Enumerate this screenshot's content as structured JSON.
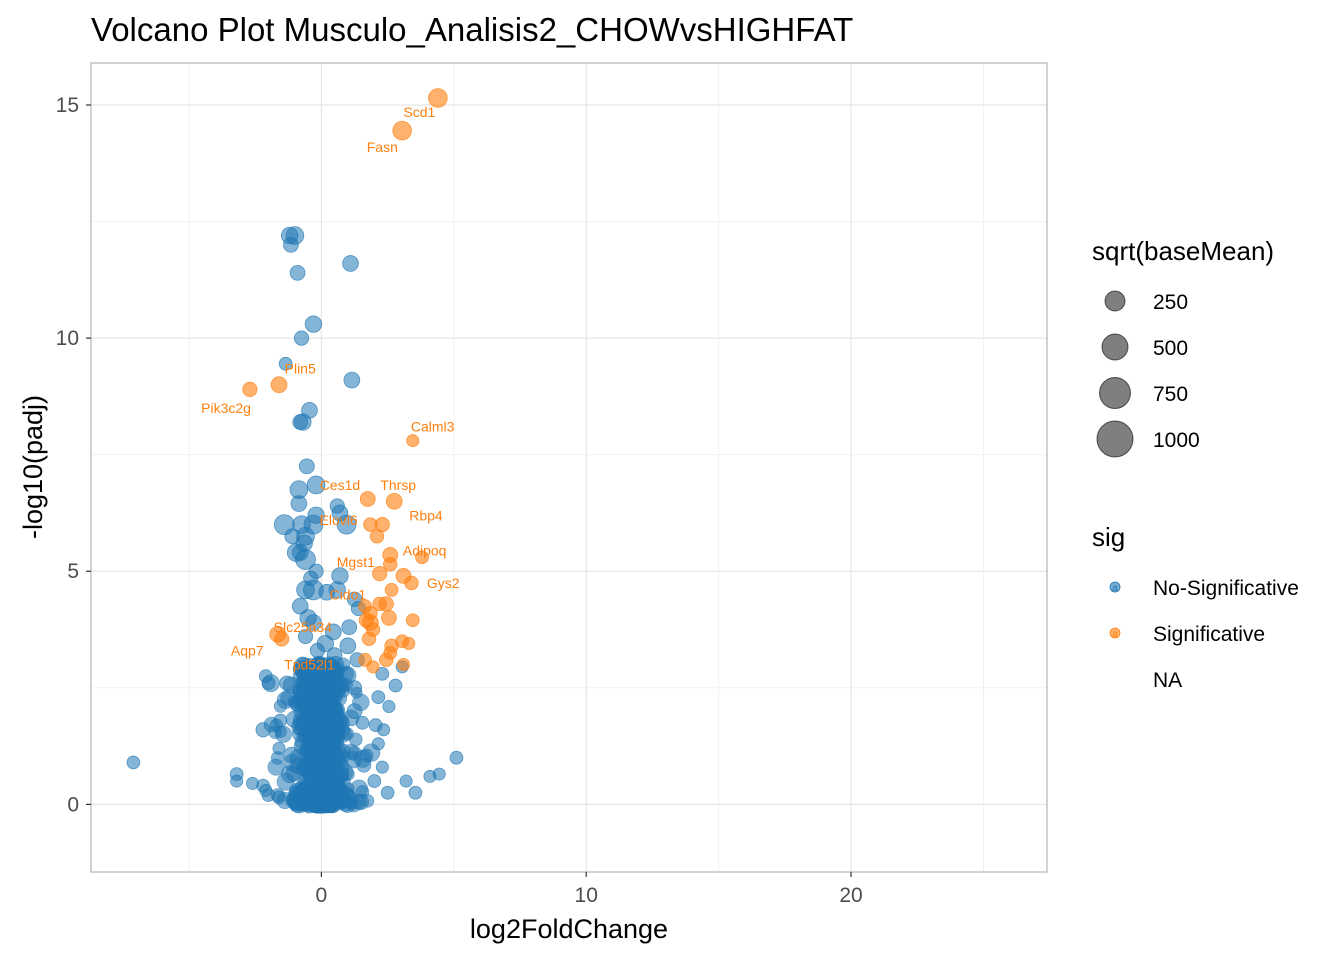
{
  "chart_data": {
    "type": "scatter",
    "title": "Volcano Plot Musculo_Analisis2_CHOWvsHIGHFAT",
    "xlabel": "log2FoldChange",
    "ylabel": "-log10(padj)",
    "xlim": [
      -8.7,
      27.4
    ],
    "ylim": [
      -1.45,
      15.9
    ],
    "x_ticks": [
      0,
      10,
      20
    ],
    "x_tick_labels": [
      "0",
      "10",
      "20"
    ],
    "y_ticks": [
      0,
      5,
      10,
      15
    ],
    "y_tick_labels": [
      "0",
      "5",
      "10",
      "15"
    ],
    "grid": true,
    "legend_position": "right",
    "colors": {
      "No-Significative": "#1f77b4",
      "Significative": "#ff7f0e"
    },
    "legend": {
      "size_title": "sqrt(baseMean)",
      "size_entries": [
        {
          "label": "250",
          "value": 250
        },
        {
          "label": "500",
          "value": 500
        },
        {
          "label": "750",
          "value": 750
        },
        {
          "label": "1000",
          "value": 1000
        }
      ],
      "color_title": "sig",
      "color_entries": [
        {
          "label": "No-Significative",
          "color": "#1f77b4",
          "key": "a"
        },
        {
          "label": "Significative",
          "color": "#ff7f0e",
          "key": "a"
        },
        {
          "label": "NA",
          "color": "",
          "key": ""
        }
      ]
    },
    "significant_points": [
      {
        "x": 4.4,
        "y": 15.15,
        "size": 560,
        "label": ""
      },
      {
        "x": 3.05,
        "y": 14.45,
        "size": 560,
        "label": "Scd1"
      },
      {
        "x": -1.6,
        "y": 9.0,
        "size": 380,
        "label": "Plin5"
      },
      {
        "x": -2.7,
        "y": 8.9,
        "size": 300,
        "label": "Pik3c2g"
      },
      {
        "x": 3.45,
        "y": 7.8,
        "size": 200,
        "label": "Calml3"
      },
      {
        "x": 1.75,
        "y": 6.55,
        "size": 330,
        "label": ""
      },
      {
        "x": 2.75,
        "y": 6.5,
        "size": 380,
        "label": "Thrsp"
      },
      {
        "x": 1.85,
        "y": 6.0,
        "size": 260,
        "label": ""
      },
      {
        "x": 2.3,
        "y": 6.0,
        "size": 300,
        "label": ""
      },
      {
        "x": 2.1,
        "y": 5.75,
        "size": 260,
        "label": ""
      },
      {
        "x": 2.6,
        "y": 5.35,
        "size": 330,
        "label": "Mgst1"
      },
      {
        "x": 3.8,
        "y": 5.3,
        "size": 230,
        "label": ""
      },
      {
        "x": 2.6,
        "y": 5.15,
        "size": 260,
        "label": ""
      },
      {
        "x": 2.2,
        "y": 4.95,
        "size": 300,
        "label": ""
      },
      {
        "x": 3.1,
        "y": 4.9,
        "size": 330,
        "label": ""
      },
      {
        "x": 3.4,
        "y": 4.75,
        "size": 260,
        "label": ""
      },
      {
        "x": 2.65,
        "y": 4.6,
        "size": 230,
        "label": ""
      },
      {
        "x": 2.2,
        "y": 4.3,
        "size": 260,
        "label": ""
      },
      {
        "x": 2.45,
        "y": 4.3,
        "size": 300,
        "label": ""
      },
      {
        "x": 1.85,
        "y": 4.1,
        "size": 260,
        "label": ""
      },
      {
        "x": 1.65,
        "y": 4.25,
        "size": 230,
        "label": ""
      },
      {
        "x": 2.55,
        "y": 4.0,
        "size": 330,
        "label": ""
      },
      {
        "x": 3.45,
        "y": 3.95,
        "size": 230,
        "label": ""
      },
      {
        "x": 1.85,
        "y": 3.9,
        "size": 380,
        "label": ""
      },
      {
        "x": 1.7,
        "y": 3.95,
        "size": 300,
        "label": ""
      },
      {
        "x": 1.95,
        "y": 3.75,
        "size": 260,
        "label": ""
      },
      {
        "x": -1.65,
        "y": 3.65,
        "size": 380,
        "label": "Slc25a34"
      },
      {
        "x": -1.5,
        "y": 3.55,
        "size": 300,
        "label": "Aqp7"
      },
      {
        "x": 1.8,
        "y": 3.55,
        "size": 260,
        "label": ""
      },
      {
        "x": 3.05,
        "y": 3.5,
        "size": 230,
        "label": ""
      },
      {
        "x": 3.3,
        "y": 3.45,
        "size": 200,
        "label": ""
      },
      {
        "x": 2.65,
        "y": 3.4,
        "size": 260,
        "label": ""
      },
      {
        "x": 2.6,
        "y": 3.25,
        "size": 230,
        "label": ""
      },
      {
        "x": 2.45,
        "y": 3.1,
        "size": 260,
        "label": ""
      },
      {
        "x": 1.65,
        "y": 3.1,
        "size": 230,
        "label": ""
      },
      {
        "x": 3.1,
        "y": 3.0,
        "size": 200,
        "label": ""
      },
      {
        "x": 1.95,
        "y": 2.95,
        "size": 200,
        "label": ""
      }
    ],
    "nonsig_points": [
      {
        "x": -1.0,
        "y": 12.2,
        "size": 500
      },
      {
        "x": -1.2,
        "y": 12.2,
        "size": 420
      },
      {
        "x": -1.15,
        "y": 12.0,
        "size": 330
      },
      {
        "x": 1.1,
        "y": 11.6,
        "size": 380
      },
      {
        "x": -0.9,
        "y": 11.4,
        "size": 330
      },
      {
        "x": -0.3,
        "y": 10.3,
        "size": 420
      },
      {
        "x": -0.75,
        "y": 10.0,
        "size": 300
      },
      {
        "x": -1.35,
        "y": 9.45,
        "size": 230
      },
      {
        "x": 1.15,
        "y": 9.1,
        "size": 380
      },
      {
        "x": -0.45,
        "y": 8.45,
        "size": 380
      },
      {
        "x": -0.7,
        "y": 8.2,
        "size": 420
      },
      {
        "x": -0.8,
        "y": 8.2,
        "size": 330
      },
      {
        "x": -0.55,
        "y": 7.25,
        "size": 330
      },
      {
        "x": -0.85,
        "y": 6.75,
        "size": 500
      },
      {
        "x": -0.2,
        "y": 6.85,
        "size": 500
      },
      {
        "x": -0.85,
        "y": 6.45,
        "size": 380
      },
      {
        "x": 0.6,
        "y": 6.4,
        "size": 300
      },
      {
        "x": 0.7,
        "y": 6.25,
        "size": 380
      },
      {
        "x": -0.2,
        "y": 6.2,
        "size": 420
      },
      {
        "x": -1.4,
        "y": 6.0,
        "size": 650
      },
      {
        "x": -0.75,
        "y": 6.0,
        "size": 500
      },
      {
        "x": -0.3,
        "y": 6.0,
        "size": 580
      },
      {
        "x": 0.95,
        "y": 6.0,
        "size": 580
      },
      {
        "x": -0.6,
        "y": 5.75,
        "size": 500
      },
      {
        "x": -1.1,
        "y": 5.75,
        "size": 330
      },
      {
        "x": -0.65,
        "y": 5.6,
        "size": 420
      },
      {
        "x": -0.95,
        "y": 5.4,
        "size": 500
      },
      {
        "x": -0.6,
        "y": 5.25,
        "size": 650
      },
      {
        "x": -0.8,
        "y": 5.4,
        "size": 380
      },
      {
        "x": -0.2,
        "y": 5.0,
        "size": 300
      },
      {
        "x": 0.7,
        "y": 4.9,
        "size": 420
      },
      {
        "x": -0.4,
        "y": 4.85,
        "size": 300
      },
      {
        "x": -0.6,
        "y": 4.6,
        "size": 500
      },
      {
        "x": -0.3,
        "y": 4.6,
        "size": 650
      },
      {
        "x": 0.6,
        "y": 4.6,
        "size": 420
      },
      {
        "x": 0.2,
        "y": 4.55,
        "size": 380
      },
      {
        "x": 1.25,
        "y": 4.4,
        "size": 300
      },
      {
        "x": -0.8,
        "y": 4.25,
        "size": 380
      },
      {
        "x": 1.4,
        "y": 4.2,
        "size": 300
      },
      {
        "x": -0.5,
        "y": 4.0,
        "size": 420
      },
      {
        "x": 1.05,
        "y": 3.8,
        "size": 330
      },
      {
        "x": -0.3,
        "y": 3.9,
        "size": 380
      },
      {
        "x": 0.45,
        "y": 3.7,
        "size": 380
      },
      {
        "x": -0.6,
        "y": 3.6,
        "size": 300
      },
      {
        "x": 0.15,
        "y": 3.45,
        "size": 420
      },
      {
        "x": 1.0,
        "y": 3.4,
        "size": 380
      },
      {
        "x": 0.5,
        "y": 3.2,
        "size": 330
      },
      {
        "x": -0.15,
        "y": 3.3,
        "size": 300
      },
      {
        "x": 1.35,
        "y": 3.1,
        "size": 300
      },
      {
        "x": 2.3,
        "y": 2.8,
        "size": 230
      },
      {
        "x": 2.8,
        "y": 2.55,
        "size": 230
      },
      {
        "x": 3.05,
        "y": 2.95,
        "size": 200
      },
      {
        "x": -2.1,
        "y": 2.75,
        "size": 230
      },
      {
        "x": -2.0,
        "y": 2.6,
        "size": 230
      },
      {
        "x": -1.3,
        "y": 2.6,
        "size": 300
      },
      {
        "x": 1.25,
        "y": 2.5,
        "size": 300
      },
      {
        "x": 2.15,
        "y": 2.3,
        "size": 230
      },
      {
        "x": 2.55,
        "y": 2.1,
        "size": 200
      },
      {
        "x": 1.25,
        "y": 2.0,
        "size": 330
      },
      {
        "x": -2.2,
        "y": 1.6,
        "size": 300
      },
      {
        "x": -1.55,
        "y": 1.8,
        "size": 230
      },
      {
        "x": -1.7,
        "y": 1.7,
        "size": 200
      },
      {
        "x": 1.55,
        "y": 1.75,
        "size": 230
      },
      {
        "x": 2.05,
        "y": 1.7,
        "size": 230
      },
      {
        "x": 2.35,
        "y": 1.6,
        "size": 200
      },
      {
        "x": -7.1,
        "y": 0.9,
        "size": 230
      },
      {
        "x": -3.2,
        "y": 0.65,
        "size": 230
      },
      {
        "x": -3.2,
        "y": 0.5,
        "size": 200
      },
      {
        "x": -2.6,
        "y": 0.45,
        "size": 200
      },
      {
        "x": -2.2,
        "y": 0.4,
        "size": 230
      },
      {
        "x": -2.0,
        "y": 0.2,
        "size": 230
      },
      {
        "x": -2.1,
        "y": 0.3,
        "size": 200
      },
      {
        "x": -1.6,
        "y": 0.15,
        "size": 230
      },
      {
        "x": 2.0,
        "y": 0.5,
        "size": 230
      },
      {
        "x": 2.3,
        "y": 0.8,
        "size": 200
      },
      {
        "x": 2.5,
        "y": 0.25,
        "size": 230
      },
      {
        "x": 3.2,
        "y": 0.5,
        "size": 200
      },
      {
        "x": 3.55,
        "y": 0.25,
        "size": 230
      },
      {
        "x": 4.1,
        "y": 0.6,
        "size": 200
      },
      {
        "x": 4.45,
        "y": 0.65,
        "size": 200
      },
      {
        "x": 5.1,
        "y": 1.0,
        "size": 230
      },
      {
        "x": 1.7,
        "y": 1.05,
        "size": 230
      },
      {
        "x": 2.15,
        "y": 1.3,
        "size": 200
      },
      {
        "x": -1.6,
        "y": 1.2,
        "size": 200
      }
    ],
    "annotations": [
      {
        "x": 3.05,
        "y": 14.45,
        "text": "Scd1",
        "label_x": 3.7,
        "label_y": 14.85
      },
      {
        "x": 2.6,
        "y": 14.45,
        "text": "Fasn",
        "label_x": 2.3,
        "label_y": 14.1
      },
      {
        "x": -1.6,
        "y": 9.0,
        "text": "Plin5",
        "label_x": -0.8,
        "label_y": 9.35
      },
      {
        "x": -2.7,
        "y": 8.9,
        "text": "Pik3c2g",
        "label_x": -3.6,
        "label_y": 8.5
      },
      {
        "x": 3.45,
        "y": 7.8,
        "text": "Calml3",
        "label_x": 4.2,
        "label_y": 8.1
      },
      {
        "x": 0.5,
        "y": 6.85,
        "text": "Ces1d",
        "label_x": 0.7,
        "label_y": 6.85
      },
      {
        "x": 2.75,
        "y": 6.5,
        "text": "Thrsp",
        "label_x": 2.9,
        "label_y": 6.85
      },
      {
        "x": 3.8,
        "y": 6.2,
        "text": "Rbp4",
        "label_x": 3.95,
        "label_y": 6.2
      },
      {
        "x": 0.6,
        "y": 6.1,
        "text": "Elovl6",
        "label_x": 0.65,
        "label_y": 6.1
      },
      {
        "x": 3.9,
        "y": 5.45,
        "text": "Adipoq",
        "label_x": 3.9,
        "label_y": 5.45
      },
      {
        "x": 1.3,
        "y": 5.2,
        "text": "Mgst1",
        "label_x": 1.3,
        "label_y": 5.2
      },
      {
        "x": 4.6,
        "y": 4.75,
        "text": "Gys2",
        "label_x": 4.6,
        "label_y": 4.75
      },
      {
        "x": 1.0,
        "y": 4.5,
        "text": "Cido1",
        "label_x": 1.0,
        "label_y": 4.5
      },
      {
        "x": -0.7,
        "y": 3.8,
        "text": "Slc25a34",
        "label_x": -0.7,
        "label_y": 3.8
      },
      {
        "x": -2.8,
        "y": 3.3,
        "text": "Aqp7",
        "label_x": -2.8,
        "label_y": 3.3
      },
      {
        "x": -0.45,
        "y": 3.0,
        "text": "Tpd52l1",
        "label_x": -0.45,
        "label_y": 3.0
      }
    ]
  }
}
